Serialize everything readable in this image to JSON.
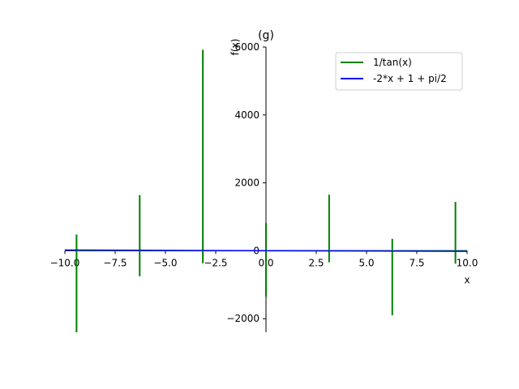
{
  "chart_data": {
    "type": "line",
    "title": "(g)",
    "xlabel": "x",
    "ylabel": "f(x)",
    "xlim": [
      -10,
      10
    ],
    "ylim": [
      -2400,
      6000
    ],
    "xticks": [
      -10,
      -7.5,
      -5,
      -2.5,
      0,
      2.5,
      5,
      7.5,
      10
    ],
    "xtick_labels": [
      "−10.0",
      "−7.5",
      "−5.0",
      "−2.5",
      "0.0",
      "2.5",
      "5.0",
      "7.5",
      "10.0"
    ],
    "yticks": [
      -2000,
      0,
      2000,
      4000,
      6000
    ],
    "ytick_labels": [
      "−2000",
      "0",
      "2000",
      "4000",
      "6000"
    ],
    "legend_position": "upper right",
    "grid": false,
    "series": [
      {
        "name": "1/tan(x)",
        "color": "#008000",
        "asymptotes": [
          {
            "x": -9.42,
            "low": -2400,
            "high": 480
          },
          {
            "x": -6.28,
            "low": -750,
            "high": 1640
          },
          {
            "x": -3.14,
            "low": -370,
            "high": 5920
          },
          {
            "x": 0.0,
            "low": -1350,
            "high": 820
          },
          {
            "x": 3.14,
            "low": -340,
            "high": 1650
          },
          {
            "x": 6.28,
            "low": -1900,
            "high": 350
          },
          {
            "x": 9.42,
            "low": -380,
            "high": 1440
          }
        ]
      },
      {
        "name": "-2*x + 1 + pi/2",
        "color": "#0000ff",
        "x": [
          -10,
          10
        ],
        "y": [
          22.57,
          -17.43
        ]
      }
    ]
  }
}
